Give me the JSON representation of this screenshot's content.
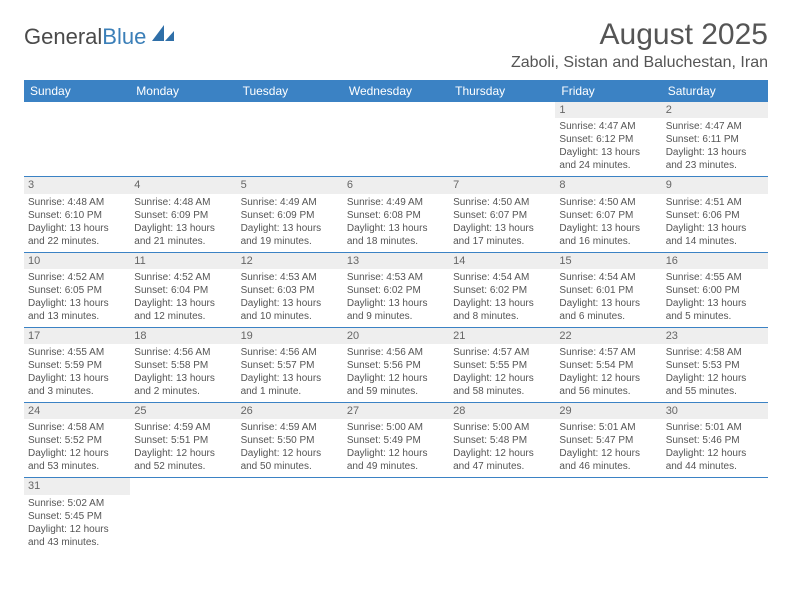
{
  "logo": {
    "text1": "General",
    "text2": "Blue"
  },
  "title": "August 2025",
  "location": "Zaboli, Sistan and Baluchestan, Iran",
  "weekdays": [
    "Sunday",
    "Monday",
    "Tuesday",
    "Wednesday",
    "Thursday",
    "Friday",
    "Saturday"
  ],
  "colors": {
    "header_bg": "#3b82c4",
    "header_text": "#ffffff",
    "daynum_bg": "#eeeeee",
    "border": "#3b82c4",
    "text": "#555555"
  },
  "weeks": [
    [
      null,
      null,
      null,
      null,
      null,
      {
        "n": "1",
        "sr": "Sunrise: 4:47 AM",
        "ss": "Sunset: 6:12 PM",
        "dl": "Daylight: 13 hours and 24 minutes."
      },
      {
        "n": "2",
        "sr": "Sunrise: 4:47 AM",
        "ss": "Sunset: 6:11 PM",
        "dl": "Daylight: 13 hours and 23 minutes."
      }
    ],
    [
      {
        "n": "3",
        "sr": "Sunrise: 4:48 AM",
        "ss": "Sunset: 6:10 PM",
        "dl": "Daylight: 13 hours and 22 minutes."
      },
      {
        "n": "4",
        "sr": "Sunrise: 4:48 AM",
        "ss": "Sunset: 6:09 PM",
        "dl": "Daylight: 13 hours and 21 minutes."
      },
      {
        "n": "5",
        "sr": "Sunrise: 4:49 AM",
        "ss": "Sunset: 6:09 PM",
        "dl": "Daylight: 13 hours and 19 minutes."
      },
      {
        "n": "6",
        "sr": "Sunrise: 4:49 AM",
        "ss": "Sunset: 6:08 PM",
        "dl": "Daylight: 13 hours and 18 minutes."
      },
      {
        "n": "7",
        "sr": "Sunrise: 4:50 AM",
        "ss": "Sunset: 6:07 PM",
        "dl": "Daylight: 13 hours and 17 minutes."
      },
      {
        "n": "8",
        "sr": "Sunrise: 4:50 AM",
        "ss": "Sunset: 6:07 PM",
        "dl": "Daylight: 13 hours and 16 minutes."
      },
      {
        "n": "9",
        "sr": "Sunrise: 4:51 AM",
        "ss": "Sunset: 6:06 PM",
        "dl": "Daylight: 13 hours and 14 minutes."
      }
    ],
    [
      {
        "n": "10",
        "sr": "Sunrise: 4:52 AM",
        "ss": "Sunset: 6:05 PM",
        "dl": "Daylight: 13 hours and 13 minutes."
      },
      {
        "n": "11",
        "sr": "Sunrise: 4:52 AM",
        "ss": "Sunset: 6:04 PM",
        "dl": "Daylight: 13 hours and 12 minutes."
      },
      {
        "n": "12",
        "sr": "Sunrise: 4:53 AM",
        "ss": "Sunset: 6:03 PM",
        "dl": "Daylight: 13 hours and 10 minutes."
      },
      {
        "n": "13",
        "sr": "Sunrise: 4:53 AM",
        "ss": "Sunset: 6:02 PM",
        "dl": "Daylight: 13 hours and 9 minutes."
      },
      {
        "n": "14",
        "sr": "Sunrise: 4:54 AM",
        "ss": "Sunset: 6:02 PM",
        "dl": "Daylight: 13 hours and 8 minutes."
      },
      {
        "n": "15",
        "sr": "Sunrise: 4:54 AM",
        "ss": "Sunset: 6:01 PM",
        "dl": "Daylight: 13 hours and 6 minutes."
      },
      {
        "n": "16",
        "sr": "Sunrise: 4:55 AM",
        "ss": "Sunset: 6:00 PM",
        "dl": "Daylight: 13 hours and 5 minutes."
      }
    ],
    [
      {
        "n": "17",
        "sr": "Sunrise: 4:55 AM",
        "ss": "Sunset: 5:59 PM",
        "dl": "Daylight: 13 hours and 3 minutes."
      },
      {
        "n": "18",
        "sr": "Sunrise: 4:56 AM",
        "ss": "Sunset: 5:58 PM",
        "dl": "Daylight: 13 hours and 2 minutes."
      },
      {
        "n": "19",
        "sr": "Sunrise: 4:56 AM",
        "ss": "Sunset: 5:57 PM",
        "dl": "Daylight: 13 hours and 1 minute."
      },
      {
        "n": "20",
        "sr": "Sunrise: 4:56 AM",
        "ss": "Sunset: 5:56 PM",
        "dl": "Daylight: 12 hours and 59 minutes."
      },
      {
        "n": "21",
        "sr": "Sunrise: 4:57 AM",
        "ss": "Sunset: 5:55 PM",
        "dl": "Daylight: 12 hours and 58 minutes."
      },
      {
        "n": "22",
        "sr": "Sunrise: 4:57 AM",
        "ss": "Sunset: 5:54 PM",
        "dl": "Daylight: 12 hours and 56 minutes."
      },
      {
        "n": "23",
        "sr": "Sunrise: 4:58 AM",
        "ss": "Sunset: 5:53 PM",
        "dl": "Daylight: 12 hours and 55 minutes."
      }
    ],
    [
      {
        "n": "24",
        "sr": "Sunrise: 4:58 AM",
        "ss": "Sunset: 5:52 PM",
        "dl": "Daylight: 12 hours and 53 minutes."
      },
      {
        "n": "25",
        "sr": "Sunrise: 4:59 AM",
        "ss": "Sunset: 5:51 PM",
        "dl": "Daylight: 12 hours and 52 minutes."
      },
      {
        "n": "26",
        "sr": "Sunrise: 4:59 AM",
        "ss": "Sunset: 5:50 PM",
        "dl": "Daylight: 12 hours and 50 minutes."
      },
      {
        "n": "27",
        "sr": "Sunrise: 5:00 AM",
        "ss": "Sunset: 5:49 PM",
        "dl": "Daylight: 12 hours and 49 minutes."
      },
      {
        "n": "28",
        "sr": "Sunrise: 5:00 AM",
        "ss": "Sunset: 5:48 PM",
        "dl": "Daylight: 12 hours and 47 minutes."
      },
      {
        "n": "29",
        "sr": "Sunrise: 5:01 AM",
        "ss": "Sunset: 5:47 PM",
        "dl": "Daylight: 12 hours and 46 minutes."
      },
      {
        "n": "30",
        "sr": "Sunrise: 5:01 AM",
        "ss": "Sunset: 5:46 PM",
        "dl": "Daylight: 12 hours and 44 minutes."
      }
    ],
    [
      {
        "n": "31",
        "sr": "Sunrise: 5:02 AM",
        "ss": "Sunset: 5:45 PM",
        "dl": "Daylight: 12 hours and 43 minutes."
      },
      null,
      null,
      null,
      null,
      null,
      null
    ]
  ]
}
